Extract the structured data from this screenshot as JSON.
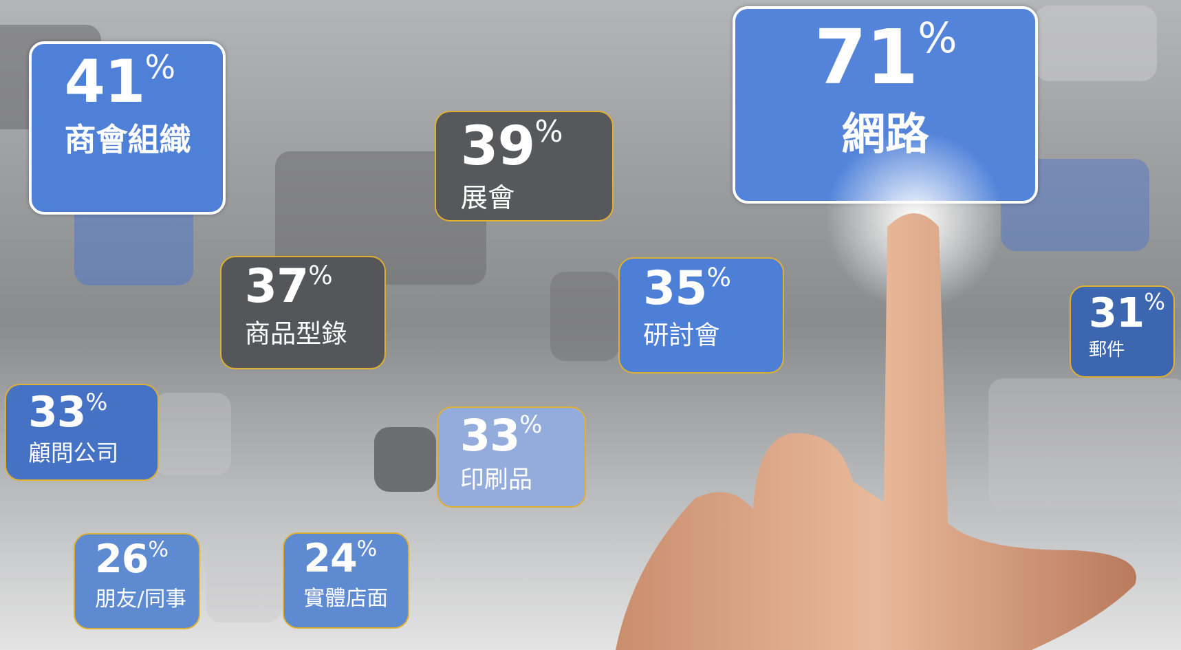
{
  "unit": "%",
  "tiles": [
    {
      "value": 41,
      "label": "商會組織"
    },
    {
      "value": 39,
      "label": "展會"
    },
    {
      "value": 71,
      "label": "網路"
    },
    {
      "value": 37,
      "label": "商品型錄"
    },
    {
      "value": 35,
      "label": "研討會"
    },
    {
      "value": 31,
      "label": "郵件"
    },
    {
      "value": 33,
      "label": "顧問公司"
    },
    {
      "value": 33,
      "label": "印刷品"
    },
    {
      "value": 26,
      "label": "朋友/同事"
    },
    {
      "value": 24,
      "label": "實體店面"
    }
  ]
}
